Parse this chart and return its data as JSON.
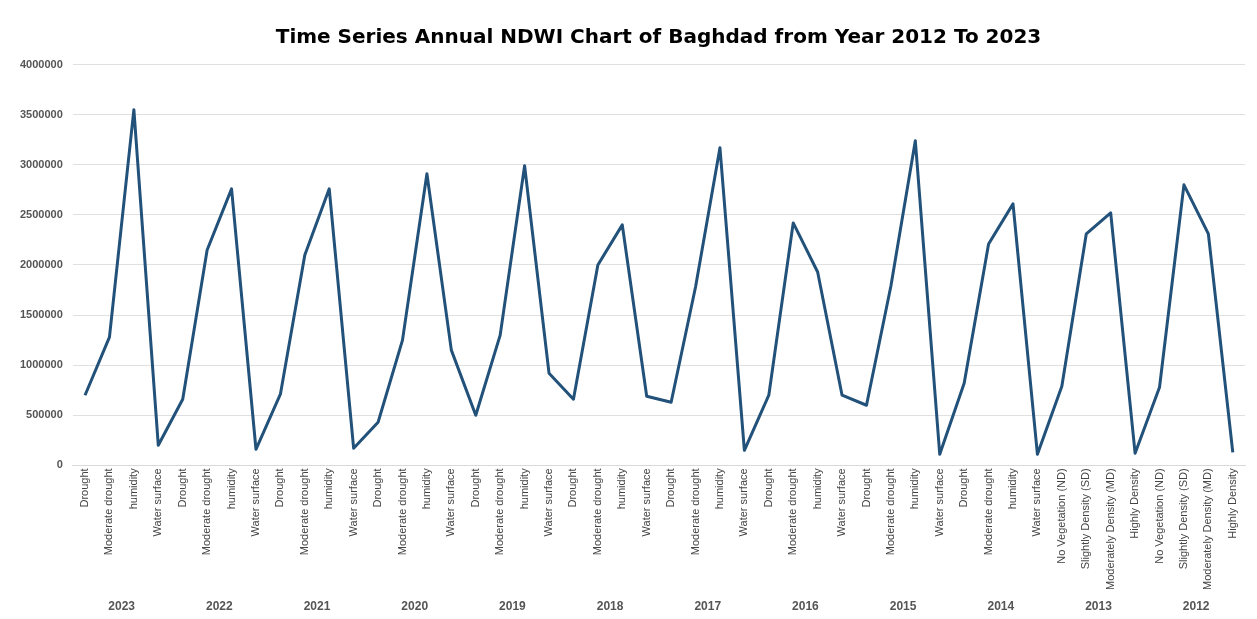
{
  "chart_data": {
    "type": "line",
    "title": "Time Series Annual NDWI Chart of Baghdad from Year 2012 To 2023",
    "categories": [
      "Drought",
      "Moderate drought",
      "humidity",
      "Water surface",
      "Drought",
      "Moderate drought",
      "humidity",
      "Water surface",
      "Drought",
      "Moderate drought",
      "humidity",
      "Water surface",
      "Drought",
      "Moderate drought",
      "humidity",
      "Water surface",
      "Drought",
      "Moderate drought",
      "humidity",
      "Water surface",
      "Drought",
      "Moderate drought",
      "humidity",
      "Water surface",
      "Drought",
      "Moderate drought",
      "humidity",
      "Water surface",
      "Drought",
      "Moderate drought",
      "humidity",
      "Water surface",
      "Drought",
      "Moderate drought",
      "humidity",
      "Water surface",
      "Drought",
      "Moderate drought",
      "humidity",
      "Water surface",
      "No Vegetation (ND)",
      "Slightly Density (SD)",
      "Moderately Density (MD)",
      "Highly Density",
      "No Vegetation (ND)",
      "Slightly Density (SD)",
      "Moderately Density (MD)",
      "Highly Density"
    ],
    "series": [
      {
        "color": "#22517a",
        "values": [
          700000,
          1280000,
          3550000,
          200000,
          660000,
          2150000,
          2760000,
          160000,
          710000,
          2100000,
          2760000,
          170000,
          430000,
          1250000,
          2910000,
          1150000,
          500000,
          1300000,
          2990000,
          920000,
          660000,
          2000000,
          2400000,
          690000,
          630000,
          1780000,
          3170000,
          150000,
          700000,
          2420000,
          1930000,
          700000,
          600000,
          1790000,
          3240000,
          110000,
          820000,
          2210000,
          2610000,
          110000,
          790000,
          2310000,
          2520000,
          120000,
          780000,
          2800000,
          2310000,
          130000
        ]
      }
    ],
    "annotations": [
      "2023",
      "2022",
      "2021",
      "2020",
      "2019",
      "2018",
      "2017",
      "2016",
      "2015",
      "2014",
      "2013",
      "2012"
    ],
    "ylim": [
      0,
      4000000
    ],
    "yticks": [
      0,
      500000,
      1000000,
      1500000,
      2000000,
      2500000,
      3000000,
      3500000,
      4000000
    ],
    "grid": "y",
    "legend": false,
    "marker": "none",
    "line_style": "solid"
  }
}
